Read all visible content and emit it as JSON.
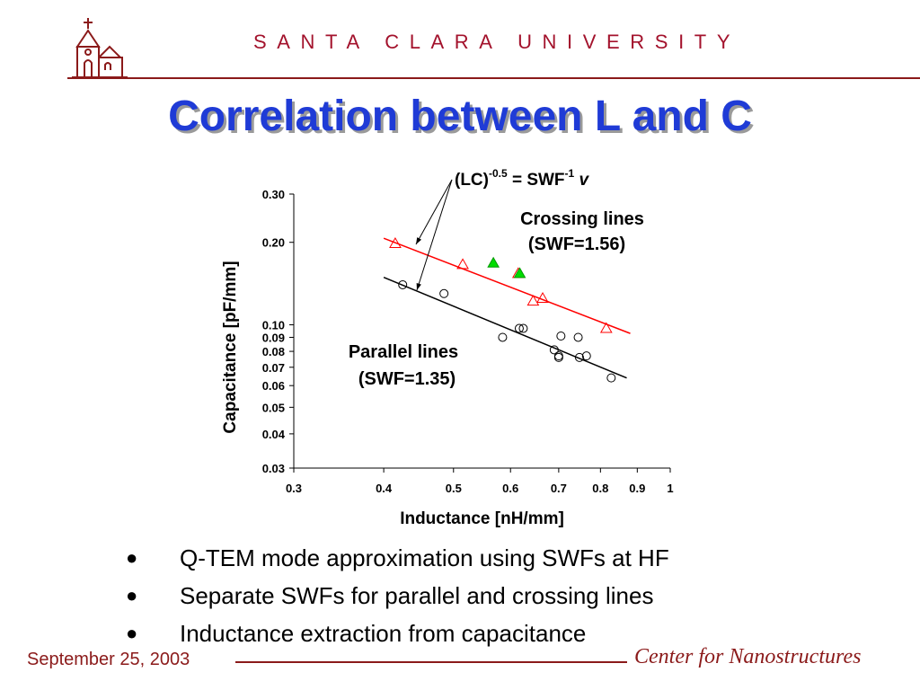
{
  "header": {
    "university": "SANTA CLARA UNIVERSITY",
    "logo_icon": "mission-church-icon"
  },
  "slide": {
    "title": "Correlation between L and C"
  },
  "chart_data": {
    "type": "scatter",
    "xscale": "log",
    "yscale": "log",
    "xlim": [
      0.3,
      1
    ],
    "ylim": [
      0.03,
      0.3
    ],
    "xlabel": "Inductance [nH/mm]",
    "ylabel": "Capacitance [pF/mm]",
    "xticks": [
      {
        "v": 0.3,
        "label": "0.3"
      },
      {
        "v": 0.4,
        "label": "0.4"
      },
      {
        "v": 0.5,
        "label": "0.5"
      },
      {
        "v": 0.6,
        "label": "0.6"
      },
      {
        "v": 0.7,
        "label": "0.7"
      },
      {
        "v": 0.8,
        "label": "0.8"
      },
      {
        "v": 0.9,
        "label": "0.9"
      },
      {
        "v": 1,
        "label": "1"
      }
    ],
    "yticks": [
      {
        "v": 0.03,
        "label": "0.03"
      },
      {
        "v": 0.04,
        "label": "0.04"
      },
      {
        "v": 0.05,
        "label": "0.05"
      },
      {
        "v": 0.06,
        "label": "0.06"
      },
      {
        "v": 0.07,
        "label": "0.07"
      },
      {
        "v": 0.08,
        "label": "0.08"
      },
      {
        "v": 0.09,
        "label": "0.09"
      },
      {
        "v": 0.1,
        "label": "0.10"
      },
      {
        "v": 0.2,
        "label": "0.20"
      },
      {
        "v": 0.3,
        "label": "0.30"
      }
    ],
    "equation": {
      "base": "(LC)",
      "exp1": "-0.5",
      "mid": " = SWF",
      "exp2": "-1",
      "var": "v"
    },
    "series": [
      {
        "label": "Crossing lines (SWF=1.56)",
        "label_lines": [
          "Crossing lines",
          "(SWF=1.56)"
        ],
        "marker": "triangle-open",
        "color": "#ff0000",
        "points": [
          [
            0.415,
            0.198
          ],
          [
            0.515,
            0.166
          ],
          [
            0.615,
            0.154
          ],
          [
            0.645,
            0.122
          ],
          [
            0.665,
            0.125
          ],
          [
            0.815,
            0.097
          ]
        ],
        "fit": {
          "x": [
            0.4,
            0.88
          ],
          "y": [
            0.207,
            0.093
          ]
        }
      },
      {
        "label": "Parallel lines (SWF=1.35)",
        "label_lines": [
          "Parallel lines",
          "(SWF=1.35)"
        ],
        "marker": "circle-open",
        "color": "#000000",
        "points": [
          [
            0.425,
            0.14
          ],
          [
            0.485,
            0.13
          ],
          [
            0.585,
            0.09
          ],
          [
            0.617,
            0.097
          ],
          [
            0.625,
            0.097
          ],
          [
            0.69,
            0.081
          ],
          [
            0.7,
            0.077
          ],
          [
            0.7,
            0.076
          ],
          [
            0.705,
            0.091
          ],
          [
            0.745,
            0.09
          ],
          [
            0.748,
            0.076
          ],
          [
            0.765,
            0.077
          ],
          [
            0.828,
            0.064
          ]
        ],
        "fit": {
          "x": [
            0.4,
            0.87
          ],
          "y": [
            0.149,
            0.064
          ]
        }
      },
      {
        "label": "",
        "marker": "triangle-filled",
        "color": "#00dd00",
        "points": [
          [
            0.568,
            0.168
          ],
          [
            0.618,
            0.154
          ]
        ]
      }
    ]
  },
  "bullets": [
    "Q-TEM mode approximation using SWFs at HF",
    "Separate SWFs for parallel and crossing lines",
    "Inductance extraction from capacitance"
  ],
  "footer": {
    "date": "September 25, 2003",
    "center": "Center for Nanostructures"
  },
  "colors": {
    "brand": "#a3122c",
    "title": "#1f3bd6",
    "footer": "#8b1a1a"
  }
}
